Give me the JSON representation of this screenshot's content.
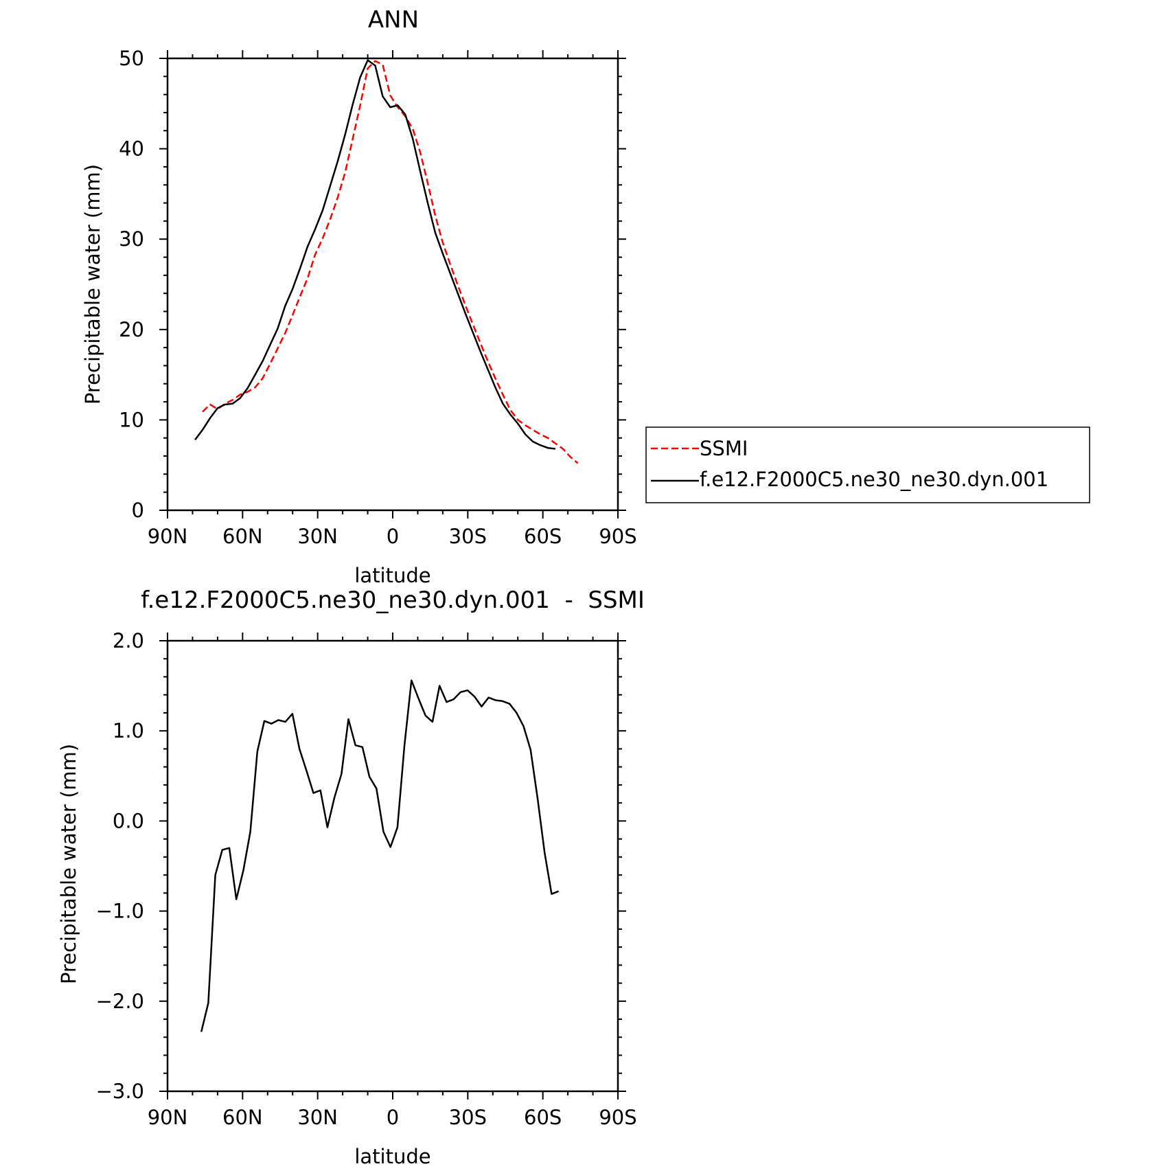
{
  "colors": {
    "model": "#000000",
    "obs": "#ff0000",
    "axes": "#000000",
    "background": "#ffffff"
  },
  "chart_data": [
    {
      "type": "line",
      "title": "ANN",
      "xlabel": "latitude",
      "ylabel": "Precipitable water (mm)",
      "xlim": [
        -90,
        90
      ],
      "ylim": [
        0,
        50
      ],
      "x_direction": "north-to-south",
      "xtick_values": [
        -90,
        -60,
        -30,
        0,
        30,
        60,
        90
      ],
      "xtick_labels": [
        "90N",
        "60N",
        "30N",
        "0",
        "30S",
        "60S",
        "90S"
      ],
      "ytick_values": [
        0,
        10,
        20,
        30,
        40,
        50
      ],
      "ytick_labels": [
        "0",
        "10",
        "20",
        "30",
        "40",
        "50"
      ],
      "grid": false,
      "legend": {
        "placement": "outside-right",
        "entries": [
          "SSMI",
          "f.e12.F2000C5.ne30_ne30.dyn.001"
        ]
      },
      "series": [
        {
          "name": "SSMI",
          "color": "#ff0000",
          "style": "dashed",
          "x": [
            -76,
            -73,
            -70,
            -67,
            -64,
            -61,
            -58,
            -55,
            -52,
            -49,
            -46,
            -43,
            -40,
            -37,
            -34,
            -31,
            -28,
            -25,
            -22,
            -19,
            -16,
            -13,
            -10,
            -7,
            -4,
            -1,
            2,
            5,
            8,
            11,
            14,
            17,
            20,
            23,
            26,
            29,
            32,
            35,
            38,
            41,
            44,
            47,
            50,
            53,
            56,
            59,
            62,
            65,
            68,
            71,
            74
          ],
          "y": [
            10.9,
            11.7,
            11.2,
            11.8,
            12.2,
            12.8,
            13.1,
            13.6,
            14.6,
            16.2,
            17.9,
            19.6,
            21.6,
            23.7,
            25.7,
            28.3,
            30.1,
            32.2,
            34.6,
            37.4,
            41.1,
            44.8,
            48.9,
            49.7,
            49.3,
            45.9,
            44.6,
            43.6,
            42.2,
            39.6,
            36.2,
            32.6,
            29.6,
            27.2,
            24.9,
            22.7,
            20.6,
            18.5,
            16.5,
            14.6,
            12.8,
            11.1,
            10.0,
            9.4,
            8.9,
            8.4,
            8.0,
            7.4,
            6.8,
            5.9,
            5.2
          ]
        },
        {
          "name": "f.e12.F2000C5.ne30_ne30.dyn.001",
          "color": "#000000",
          "style": "solid",
          "x": [
            -79,
            -76,
            -73,
            -70,
            -67,
            -64,
            -61,
            -58,
            -55,
            -52,
            -49,
            -46,
            -43,
            -40,
            -37,
            -34,
            -31,
            -28,
            -25,
            -22,
            -19,
            -16,
            -13,
            -10,
            -7,
            -4,
            -1,
            2,
            5,
            8,
            11,
            14,
            17,
            20,
            23,
            26,
            29,
            32,
            35,
            38,
            41,
            44,
            47,
            50,
            53,
            56,
            59,
            62,
            65
          ],
          "y": [
            7.8,
            8.9,
            10.2,
            11.3,
            11.7,
            11.8,
            12.4,
            13.5,
            15.0,
            16.5,
            18.3,
            20.1,
            22.6,
            24.5,
            26.8,
            29.2,
            31.1,
            33.2,
            35.9,
            38.6,
            41.6,
            44.9,
            47.9,
            49.8,
            49.2,
            45.8,
            44.6,
            44.8,
            43.8,
            41.1,
            37.5,
            34.0,
            30.7,
            28.4,
            26.2,
            24.0,
            21.8,
            19.7,
            17.6,
            15.6,
            13.6,
            11.8,
            10.6,
            9.6,
            8.4,
            7.6,
            7.2,
            6.9,
            6.8
          ]
        }
      ]
    },
    {
      "type": "line",
      "title": "f.e12.F2000C5.ne30_ne30.dyn.001  -  SSMI",
      "xlabel": "latitude",
      "ylabel": "Precipitable water (mm)",
      "xlim": [
        -90,
        90
      ],
      "ylim": [
        -3,
        2
      ],
      "x_direction": "north-to-south",
      "xtick_values": [
        -90,
        -60,
        -30,
        0,
        30,
        60,
        90
      ],
      "xtick_labels": [
        "90N",
        "60N",
        "30N",
        "0",
        "30S",
        "60S",
        "90S"
      ],
      "ytick_values": [
        -3,
        -2,
        -1,
        0,
        1,
        2
      ],
      "ytick_labels": [
        "−3.0",
        "−2.0",
        "−1.0",
        "0.0",
        "1.0",
        "2.0"
      ],
      "grid": false,
      "series": [
        {
          "color": "#000000",
          "style": "solid",
          "x": [
            -76.5,
            -73.7,
            -70.9,
            -68.1,
            -65.3,
            -62.5,
            -59.7,
            -56.9,
            -54.1,
            -51.3,
            -48.5,
            -45.7,
            -42.9,
            -40.1,
            -37.3,
            -34.5,
            -31.7,
            -28.9,
            -26.1,
            -23.3,
            -20.5,
            -17.7,
            -14.9,
            -12.1,
            -9.3,
            -6.5,
            -3.7,
            -0.9,
            1.9,
            4.7,
            7.5,
            10.3,
            13.1,
            15.9,
            18.7,
            21.5,
            24.3,
            27.1,
            29.9,
            32.7,
            35.5,
            38.3,
            41.1,
            43.9,
            46.7,
            49.5,
            52.3,
            55.1,
            57.9,
            60.7,
            63.5,
            66.3
          ],
          "y": [
            -2.34,
            -2.02,
            -0.6,
            -0.32,
            -0.3,
            -0.87,
            -0.55,
            -0.12,
            0.77,
            1.11,
            1.08,
            1.12,
            1.1,
            1.19,
            0.8,
            0.56,
            0.31,
            0.34,
            -0.07,
            0.26,
            0.52,
            1.13,
            0.84,
            0.82,
            0.49,
            0.36,
            -0.12,
            -0.29,
            -0.07,
            0.84,
            1.56,
            1.36,
            1.17,
            1.1,
            1.5,
            1.32,
            1.35,
            1.43,
            1.45,
            1.38,
            1.27,
            1.37,
            1.34,
            1.33,
            1.3,
            1.2,
            1.05,
            0.79,
            0.25,
            -0.35,
            -0.81,
            -0.78
          ]
        }
      ]
    }
  ]
}
